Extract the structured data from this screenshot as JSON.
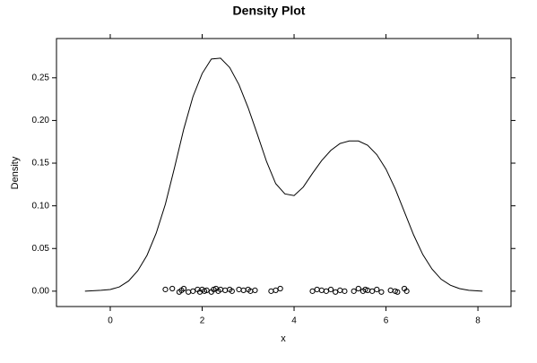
{
  "chart_data": {
    "type": "density",
    "title": "Density Plot",
    "xlabel": "x",
    "ylabel": "Density",
    "xlim": [
      -1.17,
      8.72
    ],
    "ylim": [
      -0.018,
      0.296
    ],
    "xticks": [
      0,
      2,
      4,
      6,
      8
    ],
    "yticks": [
      {
        "value": 0,
        "label": "0.00"
      },
      {
        "value": 0.05,
        "label": "0.05"
      },
      {
        "value": 0.1,
        "label": "0.10"
      },
      {
        "value": 0.15,
        "label": "0.15"
      },
      {
        "value": 0.2,
        "label": "0.20"
      },
      {
        "value": 0.25,
        "label": "0.25"
      }
    ],
    "color": "#000000",
    "curve": {
      "x": [
        -0.55,
        -0.2,
        0,
        0.2,
        0.4,
        0.6,
        0.8,
        1.0,
        1.2,
        1.4,
        1.6,
        1.8,
        2.0,
        2.2,
        2.4,
        2.6,
        2.8,
        3.0,
        3.2,
        3.4,
        3.6,
        3.8,
        4.0,
        4.2,
        4.4,
        4.6,
        4.8,
        5.0,
        5.2,
        5.4,
        5.6,
        5.8,
        6.0,
        6.2,
        6.4,
        6.6,
        6.8,
        7.0,
        7.2,
        7.4,
        7.6,
        7.8,
        8.1
      ],
      "y": [
        0.0,
        0.001,
        0.002,
        0.005,
        0.012,
        0.024,
        0.042,
        0.068,
        0.102,
        0.145,
        0.19,
        0.228,
        0.255,
        0.272,
        0.273,
        0.262,
        0.242,
        0.215,
        0.184,
        0.152,
        0.126,
        0.114,
        0.112,
        0.122,
        0.138,
        0.153,
        0.165,
        0.173,
        0.176,
        0.176,
        0.171,
        0.16,
        0.143,
        0.12,
        0.093,
        0.066,
        0.043,
        0.026,
        0.014,
        0.007,
        0.003,
        0.001,
        0.0
      ]
    },
    "points": {
      "x": [
        1.2,
        1.35,
        1.5,
        1.55,
        1.6,
        1.7,
        1.8,
        1.9,
        1.95,
        2.0,
        2.05,
        2.1,
        2.2,
        2.25,
        2.3,
        2.35,
        2.4,
        2.5,
        2.6,
        2.65,
        2.8,
        2.9,
        3.0,
        3.05,
        3.15,
        3.5,
        3.6,
        3.7,
        4.4,
        4.5,
        4.6,
        4.7,
        4.8,
        4.9,
        5.0,
        5.1,
        5.3,
        5.4,
        5.5,
        5.55,
        5.6,
        5.7,
        5.8,
        5.9,
        6.1,
        6.2,
        6.25,
        6.4,
        6.45
      ],
      "y": [
        0.002,
        0.003,
        -0.001,
        0.001,
        0.003,
        -0.001,
        0.0,
        0.002,
        -0.001,
        0.002,
        0.0,
        0.001,
        -0.001,
        0.002,
        0.003,
        0.0,
        0.002,
        0.001,
        0.002,
        0.0,
        0.002,
        0.001,
        0.002,
        0.0,
        0.001,
        0.0,
        0.001,
        0.003,
        0.0,
        0.002,
        0.001,
        0.0,
        0.002,
        -0.001,
        0.001,
        0.0,
        0.0,
        0.003,
        0.0,
        0.002,
        0.001,
        0.0,
        0.002,
        -0.001,
        0.001,
        0.0,
        -0.001,
        0.003,
        0.0
      ]
    }
  }
}
